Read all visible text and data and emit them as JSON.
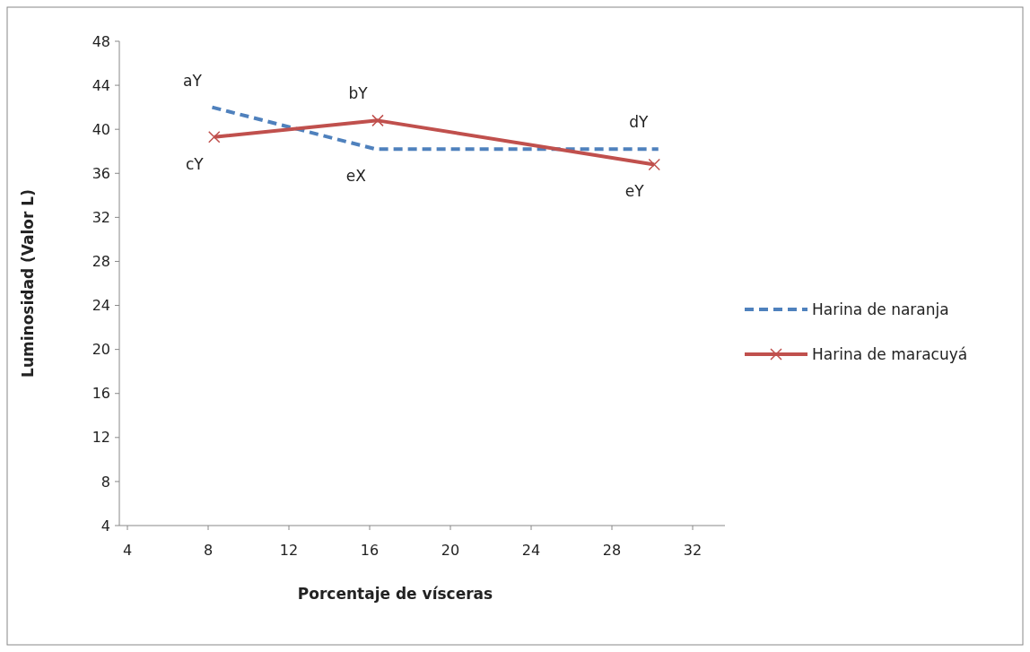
{
  "chart_data": {
    "type": "line",
    "xlabel": "Porcentaje de vísceras",
    "ylabel": "Luminosidad (Valor L)",
    "xlim": [
      3.6,
      33.6
    ],
    "xticks": [
      4,
      8,
      12,
      16,
      20,
      24,
      28,
      32
    ],
    "ylim": [
      4,
      48
    ],
    "yticks": [
      4,
      8,
      12,
      16,
      20,
      24,
      28,
      32,
      36,
      40,
      44,
      48
    ],
    "grid": false,
    "legend": "right",
    "series": [
      {
        "name": "Harina de naranja",
        "color": "#4f81bd",
        "x": [
          8.2,
          16.3,
          30.3
        ],
        "values": [
          42.0,
          38.2,
          38.2
        ],
        "line_style": "dashed",
        "marker": "none"
      },
      {
        "name": "Harina de maracuyá",
        "color": "#c0504d",
        "x": [
          8.3,
          16.4,
          30.1
        ],
        "values": [
          39.3,
          40.8,
          36.8
        ],
        "line_style": "solid",
        "marker": "cross"
      }
    ],
    "annotations": [
      {
        "text": "aY",
        "x": 8.2,
        "y": 42.0
      },
      {
        "text": "bY",
        "x": 16.4,
        "y": 40.8
      },
      {
        "text": "cY",
        "x": 8.3,
        "y": 39.3
      },
      {
        "text": "dY",
        "x": 30.3,
        "y": 38.2
      },
      {
        "text": "eX",
        "x": 16.3,
        "y": 38.2
      },
      {
        "text": "eY",
        "x": 30.1,
        "y": 36.8
      }
    ]
  }
}
